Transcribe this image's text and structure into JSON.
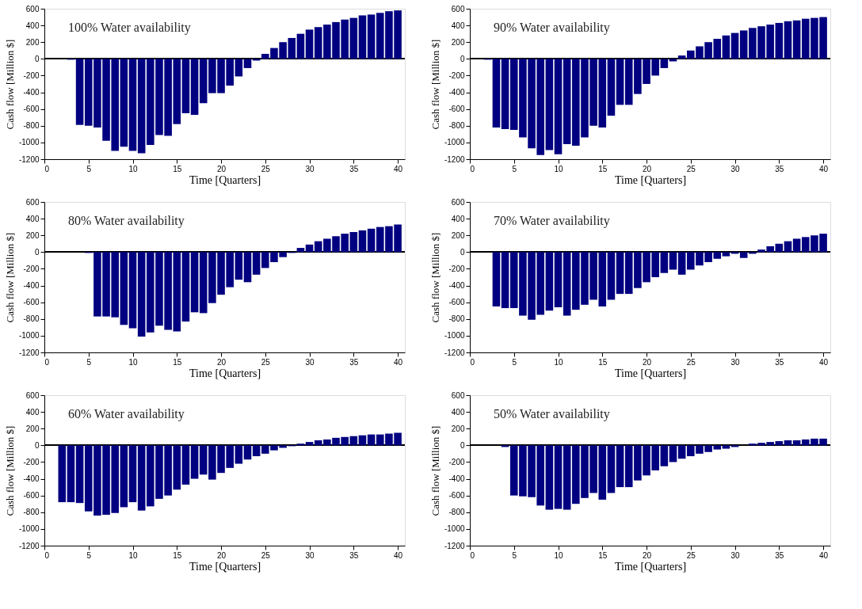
{
  "chart_data": [
    {
      "type": "bar",
      "x": [
        3,
        4,
        5,
        6,
        7,
        8,
        9,
        10,
        11,
        12,
        13,
        14,
        15,
        16,
        17,
        18,
        19,
        20,
        21,
        22,
        23,
        24,
        25,
        26,
        27,
        28,
        29,
        30,
        31,
        32,
        33,
        34,
        35,
        36,
        37,
        38,
        39,
        40
      ],
      "values": [
        -10,
        -790,
        -800,
        -820,
        -980,
        -1100,
        -1050,
        -1100,
        -1130,
        -1030,
        -910,
        -920,
        -780,
        -650,
        -670,
        -530,
        -410,
        -410,
        -320,
        -210,
        -110,
        -20,
        60,
        130,
        200,
        250,
        300,
        350,
        380,
        410,
        440,
        470,
        490,
        520,
        530,
        550,
        570,
        580
      ],
      "color": "#000080",
      "xlim": [
        0,
        40.8
      ],
      "xticks": [
        0,
        5,
        10,
        15,
        20,
        25,
        30,
        35,
        40
      ],
      "ylim": [
        -1200,
        600
      ],
      "yticks": [
        -1200,
        -1000,
        -800,
        -600,
        -400,
        -200,
        0,
        200,
        400,
        600
      ],
      "xlabel": "Time [Quarters]",
      "ylabel": "Cash flow [Million $]",
      "annotations": [
        "100% Water availability"
      ],
      "ref_lines": [
        {
          "axis": "y",
          "value": 0,
          "color": "#000000"
        }
      ]
    },
    {
      "type": "bar",
      "x": [
        2,
        3,
        4,
        5,
        6,
        7,
        8,
        9,
        10,
        11,
        12,
        13,
        14,
        15,
        16,
        17,
        18,
        19,
        20,
        21,
        22,
        23,
        24,
        25,
        26,
        27,
        28,
        29,
        30,
        31,
        32,
        33,
        34,
        35,
        36,
        37,
        38,
        39,
        40
      ],
      "values": [
        -10,
        -820,
        -840,
        -850,
        -940,
        -1070,
        -1150,
        -1090,
        -1140,
        -1020,
        -1040,
        -940,
        -800,
        -820,
        -680,
        -550,
        -550,
        -420,
        -300,
        -200,
        -110,
        -30,
        40,
        100,
        150,
        200,
        240,
        280,
        310,
        340,
        370,
        390,
        410,
        430,
        450,
        460,
        480,
        490,
        500
      ],
      "color": "#000080",
      "xlim": [
        0,
        40.8
      ],
      "xticks": [
        0,
        5,
        10,
        15,
        20,
        25,
        30,
        35,
        40
      ],
      "ylim": [
        -1200,
        600
      ],
      "yticks": [
        -1200,
        -1000,
        -800,
        -600,
        -400,
        -200,
        0,
        200,
        400,
        600
      ],
      "xlabel": "Time [Quarters]",
      "ylabel": "Cash flow [Million $]",
      "annotations": [
        "90% Water availability"
      ],
      "ref_lines": [
        {
          "axis": "y",
          "value": 0,
          "color": "#000000"
        }
      ]
    },
    {
      "type": "bar",
      "x": [
        5,
        6,
        7,
        8,
        9,
        10,
        11,
        12,
        13,
        14,
        15,
        16,
        17,
        18,
        19,
        20,
        21,
        22,
        23,
        24,
        25,
        26,
        27,
        28,
        29,
        30,
        31,
        32,
        33,
        34,
        35,
        36,
        37,
        38,
        39,
        40
      ],
      "values": [
        -10,
        -770,
        -770,
        -780,
        -870,
        -910,
        -1010,
        -960,
        -880,
        -930,
        -950,
        -830,
        -720,
        -730,
        -610,
        -510,
        -420,
        -330,
        -360,
        -270,
        -190,
        -120,
        -60,
        -10,
        50,
        90,
        130,
        160,
        190,
        220,
        240,
        260,
        280,
        300,
        310,
        330
      ],
      "color": "#000080",
      "xlim": [
        0,
        40.8
      ],
      "xticks": [
        0,
        5,
        10,
        15,
        20,
        25,
        30,
        35,
        40
      ],
      "ylim": [
        -1200,
        600
      ],
      "yticks": [
        -1200,
        -1000,
        -800,
        -600,
        -400,
        -200,
        0,
        200,
        400,
        600
      ],
      "xlabel": "Time [Quarters]",
      "ylabel": "Cash flow [Million $]",
      "annotations": [
        "80% Water availability"
      ],
      "ref_lines": [
        {
          "axis": "y",
          "value": 0,
          "color": "#000000"
        }
      ]
    },
    {
      "type": "bar",
      "x": [
        3,
        4,
        5,
        6,
        7,
        8,
        9,
        10,
        11,
        12,
        13,
        14,
        15,
        16,
        17,
        18,
        19,
        20,
        21,
        22,
        23,
        24,
        25,
        26,
        27,
        28,
        29,
        30,
        31,
        32,
        33,
        34,
        35,
        36,
        37,
        38,
        39,
        40
      ],
      "values": [
        -650,
        -670,
        -670,
        -760,
        -810,
        -750,
        -700,
        -660,
        -760,
        -690,
        -630,
        -570,
        -650,
        -570,
        -500,
        -500,
        -430,
        -360,
        -300,
        -250,
        -210,
        -270,
        -210,
        -160,
        -120,
        -80,
        -50,
        -20,
        -70,
        -20,
        30,
        70,
        100,
        130,
        160,
        180,
        200,
        220
      ],
      "color": "#000080",
      "xlim": [
        0,
        40.8
      ],
      "xticks": [
        0,
        5,
        10,
        15,
        20,
        25,
        30,
        35,
        40
      ],
      "ylim": [
        -1200,
        600
      ],
      "yticks": [
        -1200,
        -1000,
        -800,
        -600,
        -400,
        -200,
        0,
        200,
        400,
        600
      ],
      "xlabel": "Time [Quarters]",
      "ylabel": "Cash flow [Million $]",
      "annotations": [
        "70% Water availability"
      ],
      "ref_lines": [
        {
          "axis": "y",
          "value": 0,
          "color": "#000000"
        }
      ]
    },
    {
      "type": "bar",
      "x": [
        2,
        3,
        4,
        5,
        6,
        7,
        8,
        9,
        10,
        11,
        12,
        13,
        14,
        15,
        16,
        17,
        18,
        19,
        20,
        21,
        22,
        23,
        24,
        25,
        26,
        27,
        28,
        29,
        30,
        31,
        32,
        33,
        34,
        35,
        36,
        37,
        38,
        39,
        40
      ],
      "values": [
        -680,
        -680,
        -690,
        -790,
        -840,
        -830,
        -810,
        -740,
        -680,
        -780,
        -730,
        -640,
        -600,
        -530,
        -470,
        -400,
        -350,
        -410,
        -330,
        -270,
        -220,
        -170,
        -130,
        -100,
        -60,
        -30,
        -10,
        20,
        40,
        60,
        70,
        90,
        100,
        110,
        120,
        130,
        130,
        140,
        150
      ],
      "color": "#000080",
      "xlim": [
        0,
        40.8
      ],
      "xticks": [
        0,
        5,
        10,
        15,
        20,
        25,
        30,
        35,
        40
      ],
      "ylim": [
        -1200,
        600
      ],
      "yticks": [
        -1200,
        -1000,
        -800,
        -600,
        -400,
        -200,
        0,
        200,
        400,
        600
      ],
      "xlabel": "Time [Quarters]",
      "ylabel": "Cash flow [Million $]",
      "annotations": [
        "60% Water availability"
      ],
      "ref_lines": [
        {
          "axis": "y",
          "value": 0,
          "color": "#000000"
        }
      ]
    },
    {
      "type": "bar",
      "x": [
        4,
        5,
        6,
        7,
        8,
        9,
        10,
        11,
        12,
        13,
        14,
        15,
        16,
        17,
        18,
        19,
        20,
        21,
        22,
        23,
        24,
        25,
        26,
        27,
        28,
        29,
        30,
        31,
        32,
        33,
        34,
        35,
        36,
        37,
        38,
        39,
        40
      ],
      "values": [
        -20,
        -600,
        -610,
        -620,
        -720,
        -770,
        -760,
        -770,
        -700,
        -630,
        -570,
        -650,
        -570,
        -500,
        -500,
        -420,
        -360,
        -300,
        -250,
        -200,
        -160,
        -130,
        -100,
        -80,
        -50,
        -40,
        -20,
        0,
        20,
        30,
        40,
        50,
        60,
        60,
        70,
        80,
        80
      ],
      "color": "#000080",
      "xlim": [
        0,
        40.8
      ],
      "xticks": [
        0,
        5,
        10,
        15,
        20,
        25,
        30,
        35,
        40
      ],
      "ylim": [
        -1200,
        600
      ],
      "yticks": [
        -1200,
        -1000,
        -800,
        -600,
        -400,
        -200,
        0,
        200,
        400,
        600
      ],
      "xlabel": "Time [Quarters]",
      "ylabel": "Cash flow [Million $]",
      "annotations": [
        "50% Water availability"
      ],
      "ref_lines": [
        {
          "axis": "y",
          "value": 0,
          "color": "#000000"
        }
      ]
    }
  ]
}
